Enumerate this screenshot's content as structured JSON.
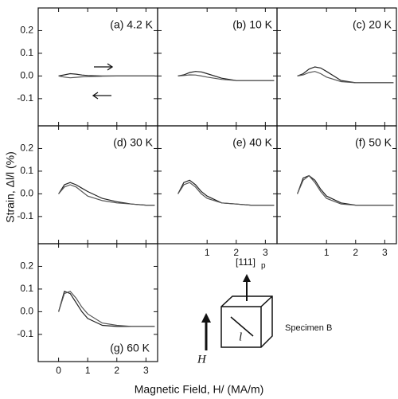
{
  "figure": {
    "xlabel": "Magnetic Field, H/ (MA/m)",
    "ylabel": "Strain, Δl/l (%)"
  },
  "chart_data": [
    {
      "type": "line",
      "title": "(a) 4.2 K",
      "x": [
        0,
        0.2,
        0.4,
        0.6,
        0.8,
        1.0,
        1.5,
        2.0,
        2.5,
        3.0,
        3.3
      ],
      "series": [
        {
          "color": "#222",
          "values": [
            0,
            0.005,
            0.01,
            0.008,
            0.004,
            0.002,
            0,
            0,
            0,
            0,
            0
          ]
        },
        {
          "color": "#555",
          "values": [
            0,
            -0.005,
            -0.008,
            -0.006,
            -0.004,
            -0.003,
            -0.001,
            0,
            0,
            0,
            0
          ]
        }
      ],
      "xlim": [
        -0.7,
        3.4
      ],
      "ylim": [
        -0.22,
        0.3
      ],
      "xticks": [
        0,
        1,
        2,
        3
      ],
      "yticks": [
        -0.1,
        {
          "value": 0,
          "label": "0.0"
        },
        0.1,
        0.2
      ],
      "x_tick_labels": false,
      "y_tick_labels": true
    },
    {
      "type": "line",
      "title": "(b) 10 K",
      "x": [
        0,
        0.2,
        0.4,
        0.6,
        0.8,
        1.0,
        1.5,
        2.0,
        2.5,
        3.0,
        3.3
      ],
      "series": [
        {
          "color": "#222",
          "values": [
            0,
            0.005,
            0.015,
            0.02,
            0.018,
            0.01,
            -0.01,
            -0.02,
            -0.02,
            -0.02,
            -0.02
          ]
        },
        {
          "color": "#555",
          "values": [
            0,
            0.002,
            0.005,
            0.004,
            0.0,
            -0.005,
            -0.015,
            -0.02,
            -0.02,
            -0.02,
            -0.02
          ]
        }
      ],
      "xlim": [
        -0.7,
        3.4
      ],
      "ylim": [
        -0.22,
        0.3
      ],
      "xticks": [
        1,
        2,
        3
      ],
      "yticks": [
        -0.1,
        {
          "value": 0,
          "label": "0.0"
        },
        0.1,
        0.2
      ],
      "x_tick_labels": false,
      "y_tick_labels": false
    },
    {
      "type": "line",
      "title": "(c) 20 K",
      "x": [
        0,
        0.2,
        0.4,
        0.6,
        0.8,
        1.0,
        1.5,
        2.0,
        2.5,
        3.0,
        3.3
      ],
      "series": [
        {
          "color": "#222",
          "values": [
            0,
            0.01,
            0.03,
            0.04,
            0.035,
            0.02,
            -0.02,
            -0.03,
            -0.03,
            -0.03,
            -0.03
          ]
        },
        {
          "color": "#555",
          "values": [
            0,
            0.005,
            0.015,
            0.02,
            0.01,
            -0.005,
            -0.025,
            -0.03,
            -0.03,
            -0.03,
            -0.03
          ]
        }
      ],
      "xlim": [
        -0.7,
        3.4
      ],
      "ylim": [
        -0.22,
        0.3
      ],
      "xticks": [
        1,
        2,
        3
      ],
      "yticks": [
        -0.1,
        {
          "value": 0,
          "label": "0.0"
        },
        0.1,
        0.2
      ],
      "x_tick_labels": false,
      "y_tick_labels": false
    },
    {
      "type": "line",
      "title": "(d) 30 K",
      "x": [
        0,
        0.2,
        0.4,
        0.6,
        0.8,
        1.0,
        1.5,
        2.0,
        2.5,
        3.0,
        3.3
      ],
      "series": [
        {
          "color": "#222",
          "values": [
            0,
            0.04,
            0.05,
            0.04,
            0.025,
            0.01,
            -0.02,
            -0.035,
            -0.045,
            -0.05,
            -0.05
          ]
        },
        {
          "color": "#555",
          "values": [
            0,
            0.03,
            0.04,
            0.03,
            0.01,
            -0.01,
            -0.03,
            -0.04,
            -0.045,
            -0.05,
            -0.05
          ]
        }
      ],
      "xlim": [
        -0.7,
        3.4
      ],
      "ylim": [
        -0.22,
        0.3
      ],
      "xticks": [
        0,
        1,
        2,
        3
      ],
      "yticks": [
        -0.1,
        {
          "value": 0,
          "label": "0.0"
        },
        0.1,
        0.2
      ],
      "x_tick_labels": false,
      "y_tick_labels": true
    },
    {
      "type": "line",
      "title": "(e) 40 K",
      "x": [
        0,
        0.2,
        0.4,
        0.6,
        0.8,
        1.0,
        1.5,
        2.0,
        2.5,
        3.0,
        3.3
      ],
      "series": [
        {
          "color": "#222",
          "values": [
            0,
            0.05,
            0.06,
            0.04,
            0.01,
            -0.01,
            -0.04,
            -0.045,
            -0.05,
            -0.05,
            -0.05
          ]
        },
        {
          "color": "#555",
          "values": [
            0,
            0.04,
            0.05,
            0.03,
            0,
            -0.02,
            -0.04,
            -0.045,
            -0.05,
            -0.05,
            -0.05
          ]
        }
      ],
      "xlim": [
        -0.7,
        3.4
      ],
      "ylim": [
        -0.22,
        0.3
      ],
      "xticks": [
        1,
        2,
        3
      ],
      "yticks": [
        -0.1,
        {
          "value": 0,
          "label": "0.0"
        },
        0.1,
        0.2
      ],
      "x_tick_labels": true,
      "y_tick_labels": false
    },
    {
      "type": "line",
      "title": "(f) 50 K",
      "x": [
        0,
        0.2,
        0.4,
        0.6,
        0.8,
        1.0,
        1.5,
        2.0,
        2.5,
        3.0,
        3.3
      ],
      "series": [
        {
          "color": "#222",
          "values": [
            0,
            0.07,
            0.08,
            0.06,
            0.02,
            -0.01,
            -0.04,
            -0.05,
            -0.05,
            -0.05,
            -0.05
          ]
        },
        {
          "color": "#555",
          "values": [
            0,
            0.06,
            0.08,
            0.05,
            0.01,
            -0.02,
            -0.045,
            -0.05,
            -0.05,
            -0.05,
            -0.05
          ]
        }
      ],
      "xlim": [
        -0.7,
        3.4
      ],
      "ylim": [
        -0.22,
        0.3
      ],
      "xticks": [
        1,
        2,
        3
      ],
      "yticks": [
        -0.1,
        {
          "value": 0,
          "label": "0.0"
        },
        0.1,
        0.2
      ],
      "x_tick_labels": true,
      "y_tick_labels": false
    },
    {
      "type": "line",
      "title": "(g) 60 K",
      "x": [
        0,
        0.2,
        0.4,
        0.6,
        0.8,
        1.0,
        1.5,
        2.0,
        2.5,
        3.0,
        3.3
      ],
      "series": [
        {
          "color": "#222",
          "values": [
            0,
            0.09,
            0.08,
            0.04,
            0,
            -0.03,
            -0.06,
            -0.065,
            -0.065,
            -0.065,
            -0.065
          ]
        },
        {
          "color": "#555",
          "values": [
            0,
            0.08,
            0.09,
            0.06,
            0.02,
            -0.01,
            -0.05,
            -0.06,
            -0.065,
            -0.065,
            -0.065
          ]
        }
      ],
      "xlim": [
        -0.7,
        3.4
      ],
      "ylim": [
        -0.22,
        0.3
      ],
      "xticks": [
        0,
        1,
        2,
        3
      ],
      "yticks": [
        -0.1,
        {
          "value": 0,
          "label": "0.0"
        },
        0.1,
        0.2
      ],
      "x_tick_labels": true,
      "y_tick_labels": true
    }
  ],
  "diagram": {
    "direction": "[111]",
    "direction_sub": "p",
    "specimen": "Specimen B",
    "field": "H",
    "length": "l"
  }
}
